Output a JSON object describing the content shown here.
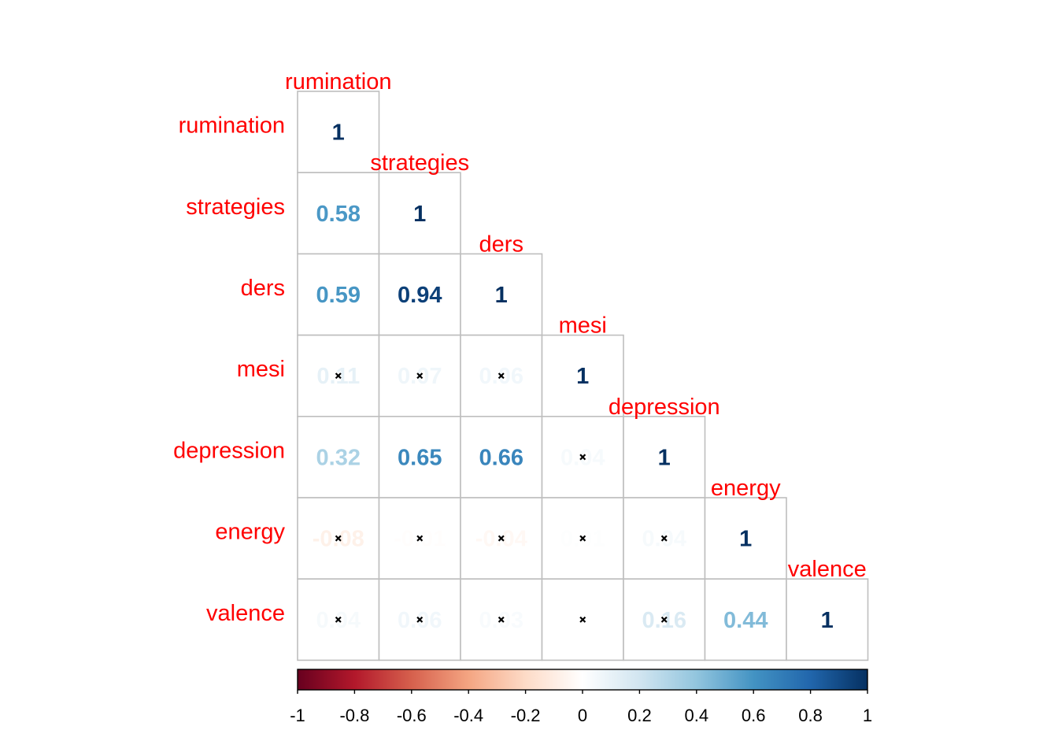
{
  "chart_data": {
    "type": "heatmap",
    "layout": "lower-triangle",
    "variables": [
      "rumination",
      "strategies",
      "ders",
      "mesi",
      "depression",
      "energy",
      "valence"
    ],
    "matrix": [
      [
        1,
        null,
        null,
        null,
        null,
        null,
        null
      ],
      [
        0.58,
        1,
        null,
        null,
        null,
        null,
        null
      ],
      [
        0.59,
        0.94,
        1,
        null,
        null,
        null,
        null
      ],
      [
        0.11,
        0.07,
        0.06,
        1,
        null,
        null,
        null
      ],
      [
        0.32,
        0.65,
        0.66,
        0.04,
        1,
        null,
        null
      ],
      [
        -0.08,
        -0.01,
        -0.04,
        0.01,
        0.04,
        1,
        null
      ],
      [
        0.04,
        0.06,
        0.03,
        0.0,
        0.16,
        0.44,
        1
      ]
    ],
    "labels": [
      [
        "1"
      ],
      [
        "0.58",
        "1"
      ],
      [
        "0.59",
        "0.94",
        "1"
      ],
      [
        "0.11",
        "0.07",
        "0.06",
        "1"
      ],
      [
        "0.32",
        "0.65",
        "0.66",
        "0.04",
        "1"
      ],
      [
        "-0.08",
        "-0.01",
        "-0.04",
        "0.01",
        "0.04",
        "1"
      ],
      [
        "0.04",
        "0.06",
        "0.03",
        "0",
        "0.16",
        "0.44",
        "1"
      ]
    ],
    "insignificant": [
      [
        false
      ],
      [
        false,
        false
      ],
      [
        false,
        false,
        false
      ],
      [
        true,
        true,
        true,
        false
      ],
      [
        false,
        false,
        false,
        true,
        false
      ],
      [
        true,
        true,
        true,
        true,
        true,
        false
      ],
      [
        true,
        true,
        true,
        true,
        true,
        false,
        false
      ]
    ],
    "insignificant_marker": "x",
    "color_scale": {
      "range": [
        -1,
        1
      ],
      "ticks": [
        "-1",
        "-0.8",
        "-0.6",
        "-0.4",
        "-0.2",
        "0",
        "0.2",
        "0.4",
        "0.6",
        "0.8",
        "1"
      ],
      "colors": [
        "#67001F",
        "#B2182B",
        "#D6604D",
        "#F4A582",
        "#FDDBC7",
        "#FFFFFF",
        "#D1E5F0",
        "#92C5DE",
        "#4393C3",
        "#2166AC",
        "#053061"
      ]
    },
    "colorbar_position": "bottom",
    "label_color": "#FF0000",
    "grid_color": "#BEBEBE"
  }
}
